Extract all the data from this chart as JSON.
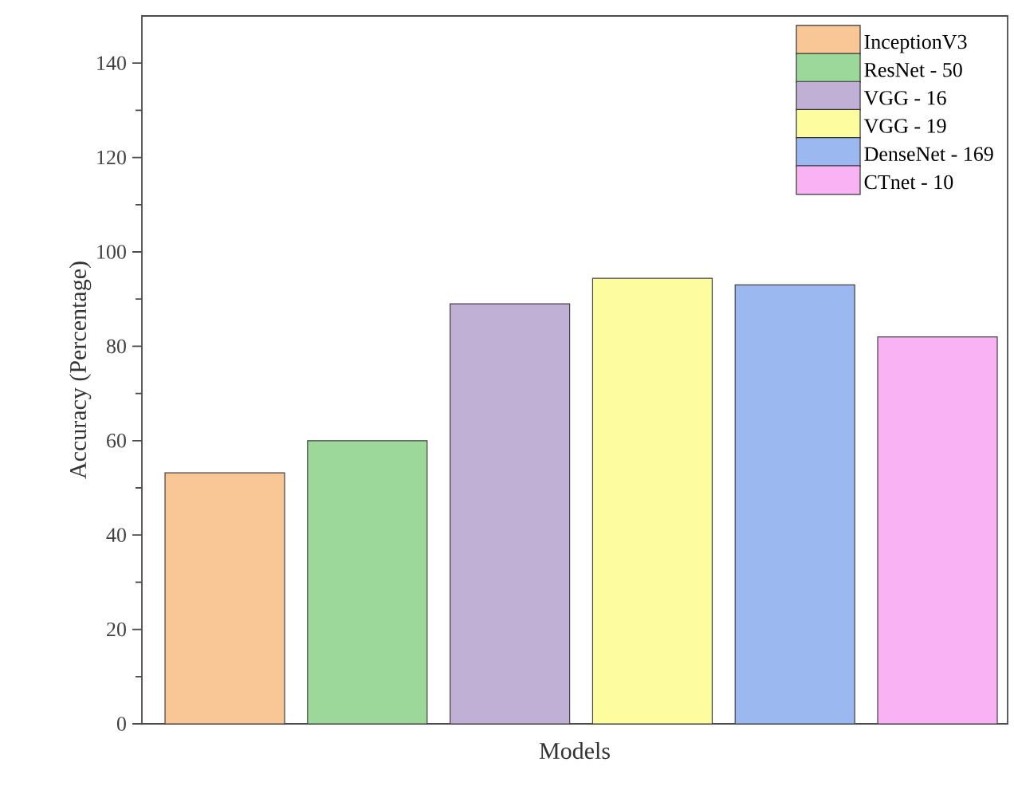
{
  "chart_data": {
    "type": "bar",
    "xlabel": "Models",
    "ylabel": "Accuracy (Percentage)",
    "categories": [
      null
    ],
    "series": [
      {
        "name": "InceptionV3",
        "color": "#f9c795",
        "values": [
          53.2
        ]
      },
      {
        "name": "ResNet - 50",
        "color": "#9dd89b",
        "values": [
          60
        ]
      },
      {
        "name": "VGG - 16",
        "color": "#c0b0d6",
        "values": [
          89
        ]
      },
      {
        "name": "VGG - 19",
        "color": "#fdfda0",
        "values": [
          94.4
        ]
      },
      {
        "name": "DenseNet - 169",
        "color": "#9bb9f0",
        "values": [
          93
        ]
      },
      {
        "name": "CTnet - 10",
        "color": "#f9b3f5",
        "values": [
          82
        ]
      }
    ],
    "ylim": [
      0,
      150
    ],
    "yticks": [
      0,
      20,
      40,
      60,
      80,
      100,
      120,
      140
    ],
    "legend": "top right",
    "tick_labels": "y"
  }
}
